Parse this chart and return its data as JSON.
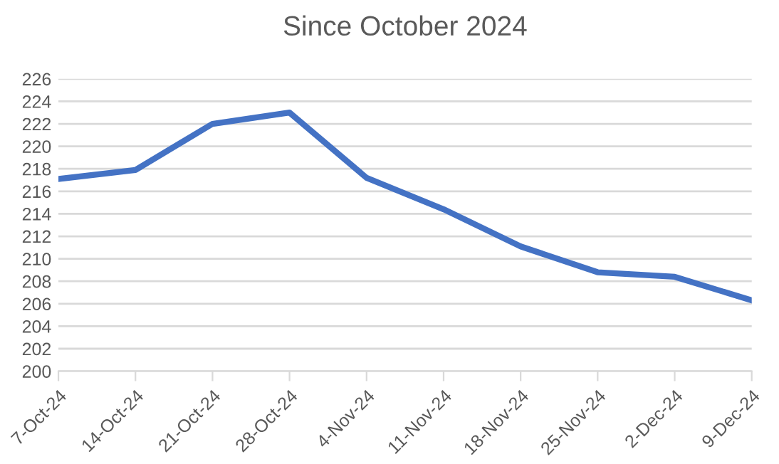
{
  "chart_data": {
    "type": "line",
    "title": "Since October 2024",
    "categories": [
      "7-Oct-24",
      "14-Oct-24",
      "21-Oct-24",
      "28-Oct-24",
      "4-Nov-24",
      "11-Nov-24",
      "18-Nov-24",
      "25-Nov-24",
      "2-Dec-24",
      "9-Dec-24"
    ],
    "series": [
      {
        "color": "#4472c4",
        "values": [
          217.1,
          217.9,
          222.0,
          223.0,
          217.2,
          214.4,
          211.1,
          208.8,
          208.4,
          206.3
        ]
      }
    ],
    "ylim": [
      200,
      226
    ],
    "yticks": [
      200,
      202,
      204,
      206,
      208,
      210,
      212,
      214,
      216,
      218,
      220,
      222,
      224,
      226
    ],
    "grid": "y",
    "marker": "none",
    "line_style": "solid"
  }
}
